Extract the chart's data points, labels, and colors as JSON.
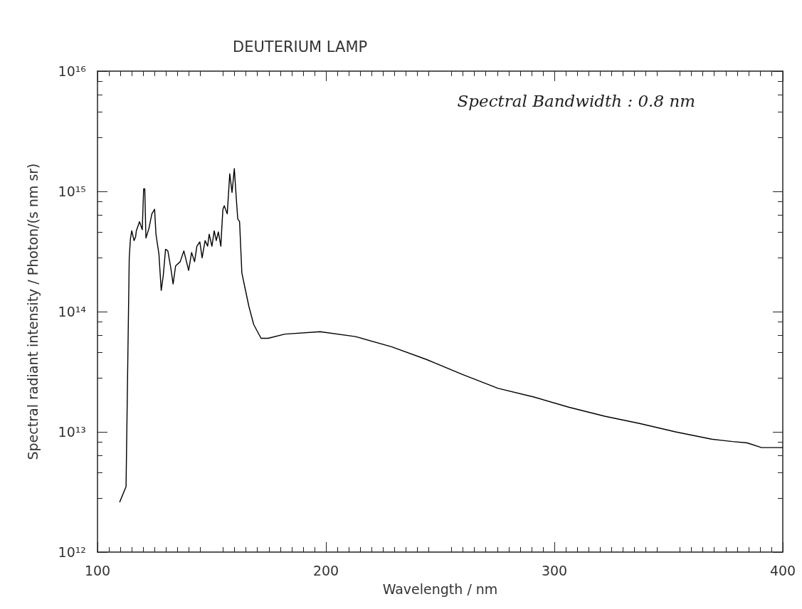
{
  "chart_data": {
    "type": "line",
    "title": "DEUTERIUM LAMP",
    "xlabel": "Wavelength / nm",
    "ylabel": "Spectral radiant intensity / Photon/(s nm sr)",
    "annotations": [
      "Spectral Bandwidth : 0.8 nm"
    ],
    "log": "y",
    "grid": false,
    "marker": "none",
    "line_style": "solid",
    "xlim": [
      100,
      400
    ],
    "xticks": [
      100,
      200,
      300,
      400
    ],
    "ylim": [
      1000000000000.0,
      1e+16
    ],
    "yticks": [
      {
        "value": 1000000000000.0,
        "label": "10¹²"
      },
      {
        "value": 10000000000000.0,
        "label": "10¹³"
      },
      {
        "value": 100000000000000.0,
        "label": "10¹⁴"
      },
      {
        "value": 1000000000000000.0,
        "label": "10¹⁵"
      },
      {
        "value": 1e+16,
        "label": "10¹⁶"
      }
    ],
    "series": [
      {
        "color": "#000000",
        "x": [
          109.7,
          112.5,
          113.6,
          113.9,
          114.4,
          115.0,
          116.0,
          116.7,
          117.0,
          118.4,
          119.6,
          120.2,
          120.7,
          121.2,
          122.5,
          123.8,
          125.0,
          125.6,
          126.9,
          127.9,
          128.8,
          129.8,
          130.8,
          132.1,
          133.1,
          134.2,
          136.2,
          137.8,
          139.9,
          141.2,
          142.5,
          143.5,
          144.8,
          145.8,
          147.1,
          148.2,
          148.9,
          150.1,
          151.1,
          152.0,
          152.9,
          154.0,
          154.4,
          154.9,
          155.5,
          156.8,
          157.9,
          158.9,
          159.9,
          160.7,
          161.4,
          162.2,
          163.2,
          164.8,
          166.3,
          168.4,
          171.6,
          174.7,
          182,
          197.5,
          213,
          228.7,
          244,
          259.8,
          275.4,
          291,
          306.5,
          322,
          337.7,
          353,
          368.8,
          378,
          384.4,
          390.7,
          400
        ],
        "values": [
          2600000000000.0,
          3500000000000.0,
          110000000000000.0,
          280000000000000.0,
          400000000000000.0,
          470000000000000.0,
          390000000000000.0,
          420000000000000.0,
          470000000000000.0,
          560000000000000.0,
          480000000000000.0,
          1050000000000000.0,
          1050000000000000.0,
          410000000000000.0,
          490000000000000.0,
          650000000000000.0,
          710000000000000.0,
          440000000000000.0,
          300000000000000.0,
          150000000000000.0,
          200000000000000.0,
          330000000000000.0,
          320000000000000.0,
          230000000000000.0,
          170000000000000.0,
          240000000000000.0,
          260000000000000.0,
          320000000000000.0,
          220000000000000.0,
          310000000000000.0,
          260000000000000.0,
          350000000000000.0,
          380000000000000.0,
          280000000000000.0,
          390000000000000.0,
          350000000000000.0,
          440000000000000.0,
          350000000000000.0,
          470000000000000.0,
          390000000000000.0,
          460000000000000.0,
          350000000000000.0,
          490000000000000.0,
          710000000000000.0,
          760000000000000.0,
          650000000000000.0,
          1400000000000000.0,
          980000000000000.0,
          1550000000000000.0,
          910000000000000.0,
          590000000000000.0,
          560000000000000.0,
          210000000000000.0,
          150000000000000.0,
          110000000000000.0,
          78000000000000.0,
          60000000000000.0,
          60000000000000.0,
          65000000000000.0,
          68000000000000.0,
          62000000000000.0,
          51000000000000.0,
          40000000000000.0,
          30000000000000.0,
          23000000000000.0,
          19500000000000.0,
          16000000000000.0,
          13500000000000.0,
          11700000000000.0,
          10000000000000.0,
          8700000000000.0,
          8300000000000.0,
          8100000000000.0,
          7400000000000.0,
          7400000000000.0
        ]
      }
    ]
  }
}
